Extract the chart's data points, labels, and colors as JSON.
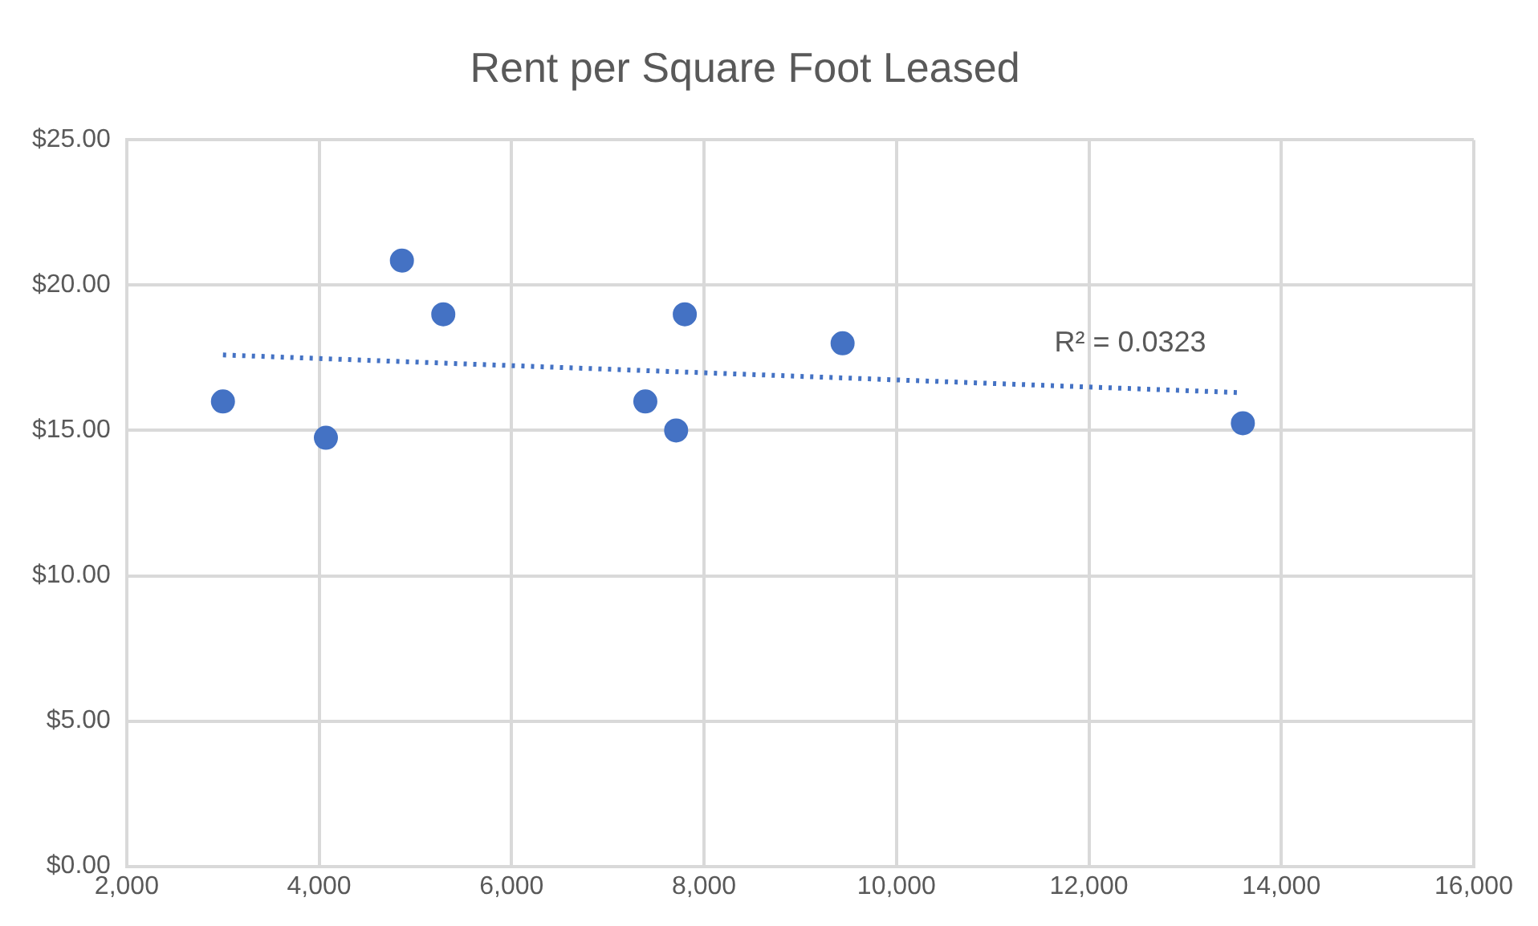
{
  "chart_data": {
    "type": "scatter",
    "title": "Rent per Square Foot Leased",
    "xlim": [
      2000,
      16000
    ],
    "xticks": [
      {
        "value": 2000,
        "label": "2,000"
      },
      {
        "value": 4000,
        "label": "4,000"
      },
      {
        "value": 6000,
        "label": "6,000"
      },
      {
        "value": 8000,
        "label": "8,000"
      },
      {
        "value": 10000,
        "label": "10,000"
      },
      {
        "value": 12000,
        "label": "12,000"
      },
      {
        "value": 14000,
        "label": "14,000"
      },
      {
        "value": 16000,
        "label": "16,000"
      }
    ],
    "ylim": [
      0,
      25
    ],
    "yticks": [
      {
        "value": 0,
        "label": "$0.00"
      },
      {
        "value": 5,
        "label": "$5.00"
      },
      {
        "value": 10,
        "label": "$10.00"
      },
      {
        "value": 15,
        "label": "$15.00"
      },
      {
        "value": 20,
        "label": "$20.00"
      },
      {
        "value": 25,
        "label": "$25.00"
      }
    ],
    "grid": true,
    "legend": false,
    "marker": "circle",
    "series": [
      {
        "type": "scatter",
        "color": "#4472c4",
        "x": [
          3000,
          4070,
          4860,
          5290,
          7390,
          7710,
          7800,
          9440,
          13600
        ],
        "values": [
          16,
          14.75,
          20.85,
          19,
          16,
          15,
          19,
          18,
          15.25
        ]
      },
      {
        "type": "line",
        "color": "#4472c4",
        "line_style": "dotted",
        "marker": "none",
        "x": [
          3000,
          13600
        ],
        "values": [
          17.6,
          16.3
        ]
      }
    ],
    "annotations": [
      "R² = 0.0323"
    ]
  }
}
